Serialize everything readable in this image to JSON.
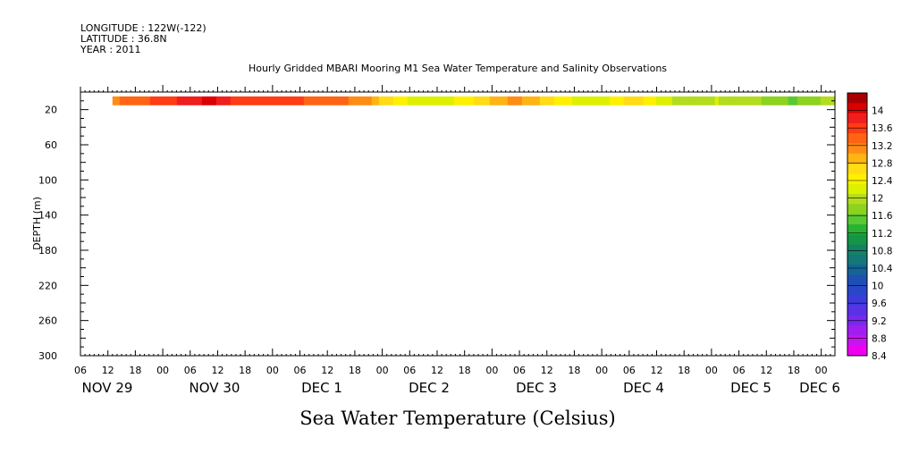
{
  "header": {
    "longitude": "LONGITUDE : 122W(-122)",
    "latitude": "LATITUDE : 36.8N",
    "year": "YEAR : 2011"
  },
  "chart_data": {
    "type": "heatmap",
    "title": "Hourly Gridded MBARI Mooring M1 Sea Water Temperature and Salinity Observations",
    "xlabel": "Sea Water Temperature (Celsius)",
    "ylabel": "DEPTH (m)",
    "y_axis": {
      "range": [
        0,
        300
      ],
      "inverted": true,
      "ticks": [
        20,
        60,
        100,
        140,
        180,
        220,
        260,
        300
      ]
    },
    "x_axis": {
      "start": "2011-11-29 06:00",
      "end": "2011-12-06 03:00",
      "hour_labels": [
        "06",
        "12",
        "18",
        "00",
        "06",
        "12",
        "18",
        "00",
        "06",
        "12",
        "18",
        "00",
        "06",
        "12",
        "18",
        "00",
        "06",
        "12",
        "18",
        "00",
        "06",
        "12",
        "18",
        "00",
        "06",
        "12",
        "18",
        "00"
      ],
      "day_labels": [
        "NOV 29",
        "NOV 30",
        "DEC  1",
        "DEC  2",
        "DEC  3",
        "DEC  4",
        "DEC  5",
        "DEC  6"
      ]
    },
    "data_range": {
      "start": "2011-11-29 13:00",
      "end": "2011-12-06 03:00",
      "depth_top": 5,
      "depth_bottom": 15
    },
    "temperature_series": [
      {
        "x": "2011-11-29 13:00",
        "value": 13.2
      },
      {
        "x": "2011-11-29 19:00",
        "value": 13.4
      },
      {
        "x": "2011-11-30 01:00",
        "value": 13.6
      },
      {
        "x": "2011-11-30 07:00",
        "value": 13.9
      },
      {
        "x": "2011-11-30 11:00",
        "value": 14.0
      },
      {
        "x": "2011-11-30 15:00",
        "value": 13.7
      },
      {
        "x": "2011-11-30 21:00",
        "value": 13.5
      },
      {
        "x": "2011-12-01 03:00",
        "value": 13.6
      },
      {
        "x": "2011-12-01 09:00",
        "value": 13.4
      },
      {
        "x": "2011-12-01 15:00",
        "value": 13.3
      },
      {
        "x": "2011-12-01 21:00",
        "value": 13.1
      },
      {
        "x": "2011-12-02 00:00",
        "value": 12.7
      },
      {
        "x": "2011-12-02 03:00",
        "value": 12.5
      },
      {
        "x": "2011-12-02 07:00",
        "value": 12.2
      },
      {
        "x": "2011-12-02 12:00",
        "value": 12.1
      },
      {
        "x": "2011-12-02 17:00",
        "value": 12.4
      },
      {
        "x": "2011-12-02 21:00",
        "value": 12.6
      },
      {
        "x": "2011-12-03 01:00",
        "value": 12.9
      },
      {
        "x": "2011-12-03 05:00",
        "value": 13.1
      },
      {
        "x": "2011-12-03 09:00",
        "value": 12.9
      },
      {
        "x": "2011-12-03 13:00",
        "value": 12.6
      },
      {
        "x": "2011-12-03 18:00",
        "value": 12.3
      },
      {
        "x": "2011-12-03 23:00",
        "value": 12.1
      },
      {
        "x": "2011-12-04 04:00",
        "value": 12.5
      },
      {
        "x": "2011-12-04 07:00",
        "value": 12.7
      },
      {
        "x": "2011-12-04 11:00",
        "value": 12.4
      },
      {
        "x": "2011-12-04 15:00",
        "value": 12.1
      },
      {
        "x": "2011-12-04 20:00",
        "value": 12.0
      },
      {
        "x": "2011-12-05 01:00",
        "value": 12.1
      },
      {
        "x": "2011-12-05 06:00",
        "value": 12.0
      },
      {
        "x": "2011-12-05 10:00",
        "value": 11.9
      },
      {
        "x": "2011-12-05 14:00",
        "value": 11.7
      },
      {
        "x": "2011-12-05 18:00",
        "value": 11.6
      },
      {
        "x": "2011-12-05 22:00",
        "value": 11.8
      },
      {
        "x": "2011-12-06 01:00",
        "value": 11.9
      },
      {
        "x": "2011-12-06 03:00",
        "value": 12.0
      }
    ],
    "colorbar": {
      "min": 8.4,
      "max": 14.4,
      "labels": [
        "14",
        "13.6",
        "13.2",
        "12.8",
        "12.4",
        "12",
        "11.6",
        "11.2",
        "10.8",
        "10.4",
        "10",
        "9.6",
        "9.2",
        "8.8",
        "8.4"
      ],
      "colors": [
        "#a80000",
        "#dc0000",
        "#f01e1e",
        "#ff3c14",
        "#ff6414",
        "#ff8c14",
        "#ffb414",
        "#ffdc14",
        "#fff000",
        "#dcf000",
        "#b4dc1e",
        "#8cd21e",
        "#5ac832",
        "#28b432",
        "#149646",
        "#148264",
        "#147878",
        "#146496",
        "#1e50b4",
        "#2846c8",
        "#3c3cdc",
        "#5a32e6",
        "#7828f0",
        "#a01ef0",
        "#c814f0",
        "#f000f0"
      ]
    },
    "grid": false
  }
}
